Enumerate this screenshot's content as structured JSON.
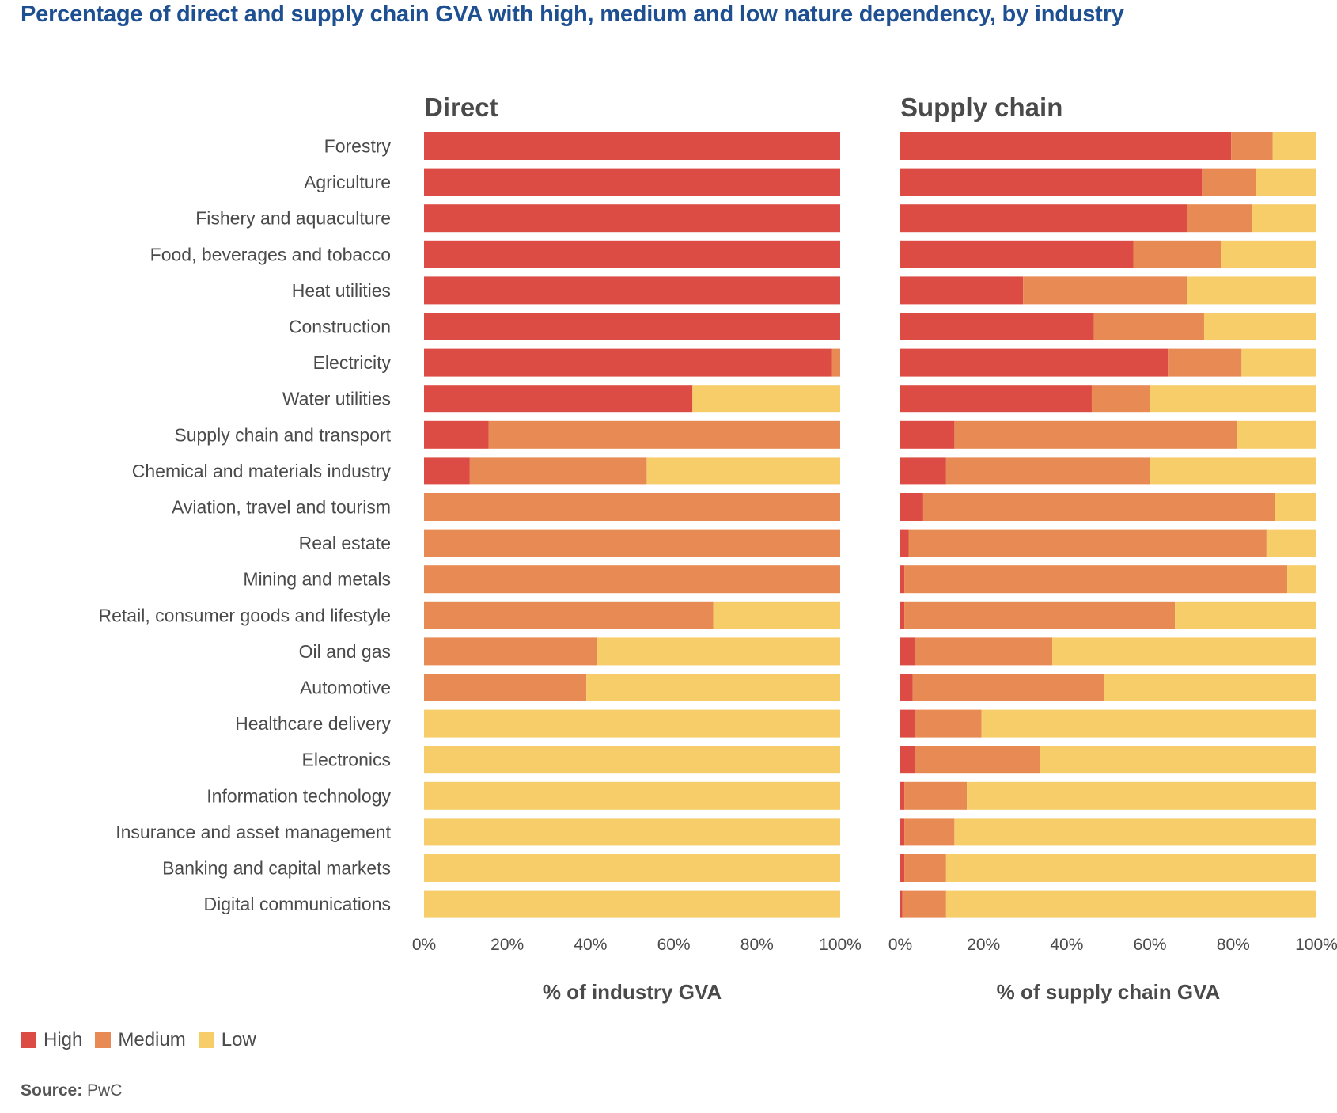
{
  "title": "Percentage of direct and supply chain GVA with high, medium and low nature dependency, by industry",
  "legend": {
    "high": "High",
    "medium": "Medium",
    "low": "Low"
  },
  "colors": {
    "high": "#dd4c44",
    "medium": "#e88a53",
    "low": "#f6cd69"
  },
  "source": {
    "label": "Source:",
    "value": "PwC"
  },
  "chart_data": [
    {
      "type": "bar",
      "orientation": "horizontal",
      "stacked": true,
      "title": "Direct",
      "xlabel": "% of industry GVA",
      "xlim": [
        0,
        100
      ],
      "x_ticks": [
        "0%",
        "20%",
        "40%",
        "60%",
        "80%",
        "100%"
      ],
      "categories": [
        "Forestry",
        "Agriculture",
        "Fishery and aquaculture",
        "Food, beverages and tobacco",
        "Heat utilities",
        "Construction",
        "Electricity",
        "Water utilities",
        "Supply chain and transport",
        "Chemical and materials industry",
        "Aviation, travel and tourism",
        "Real estate",
        "Mining and metals",
        "Retail, consumer goods and lifestyle",
        "Oil and gas",
        "Automotive",
        "Healthcare delivery",
        "Electronics",
        "Information technology",
        "Insurance and asset management",
        "Banking and capital markets",
        "Digital communications"
      ],
      "series": [
        {
          "name": "High",
          "values": [
            100,
            100,
            100,
            100,
            100,
            100,
            98,
            64.5,
            15.5,
            11,
            0,
            0,
            0,
            0,
            0,
            0,
            0,
            0,
            0,
            0,
            0,
            0
          ]
        },
        {
          "name": "Medium",
          "values": [
            0,
            0,
            0,
            0,
            0,
            0,
            2,
            0,
            84.5,
            42.5,
            100,
            100,
            100,
            69.5,
            41.5,
            39,
            0,
            0,
            0,
            0,
            0,
            0
          ]
        },
        {
          "name": "Low",
          "values": [
            0,
            0,
            0,
            0,
            0,
            0,
            0,
            35.5,
            0,
            46.5,
            0,
            0,
            0,
            30.5,
            58.5,
            61,
            100,
            100,
            100,
            100,
            100,
            100
          ]
        }
      ]
    },
    {
      "type": "bar",
      "orientation": "horizontal",
      "stacked": true,
      "title": "Supply chain",
      "xlabel": "% of supply chain GVA",
      "xlim": [
        0,
        100
      ],
      "x_ticks": [
        "0%",
        "20%",
        "40%",
        "60%",
        "80%",
        "100%"
      ],
      "categories": [
        "Forestry",
        "Agriculture",
        "Fishery and aquaculture",
        "Food, beverages and tobacco",
        "Heat utilities",
        "Construction",
        "Electricity",
        "Water utilities",
        "Supply chain and transport",
        "Chemical and materials industry",
        "Aviation, travel and tourism",
        "Real estate",
        "Mining and metals",
        "Retail, consumer goods and lifestyle",
        "Oil and gas",
        "Automotive",
        "Healthcare delivery",
        "Electronics",
        "Information technology",
        "Insurance and asset management",
        "Banking and capital markets",
        "Digital communications"
      ],
      "series": [
        {
          "name": "High",
          "values": [
            79.5,
            72.5,
            69,
            56,
            29.5,
            46.5,
            64.5,
            46,
            13,
            11,
            5.5,
            2,
            1,
            1,
            3.5,
            3,
            3.5,
            3.5,
            1,
            1,
            1,
            0.5
          ]
        },
        {
          "name": "Medium",
          "values": [
            10,
            13,
            15.5,
            21,
            39.5,
            26.5,
            17.5,
            14,
            68,
            49,
            84.5,
            86,
            92,
            65,
            33,
            46,
            16,
            30,
            15,
            12,
            10,
            10.5
          ]
        },
        {
          "name": "Low",
          "values": [
            10.5,
            14.5,
            15.5,
            23,
            31,
            27,
            18,
            40,
            19,
            40,
            10,
            12,
            7,
            34,
            63.5,
            51,
            80.5,
            66.5,
            84,
            87,
            89,
            89
          ]
        }
      ]
    }
  ]
}
